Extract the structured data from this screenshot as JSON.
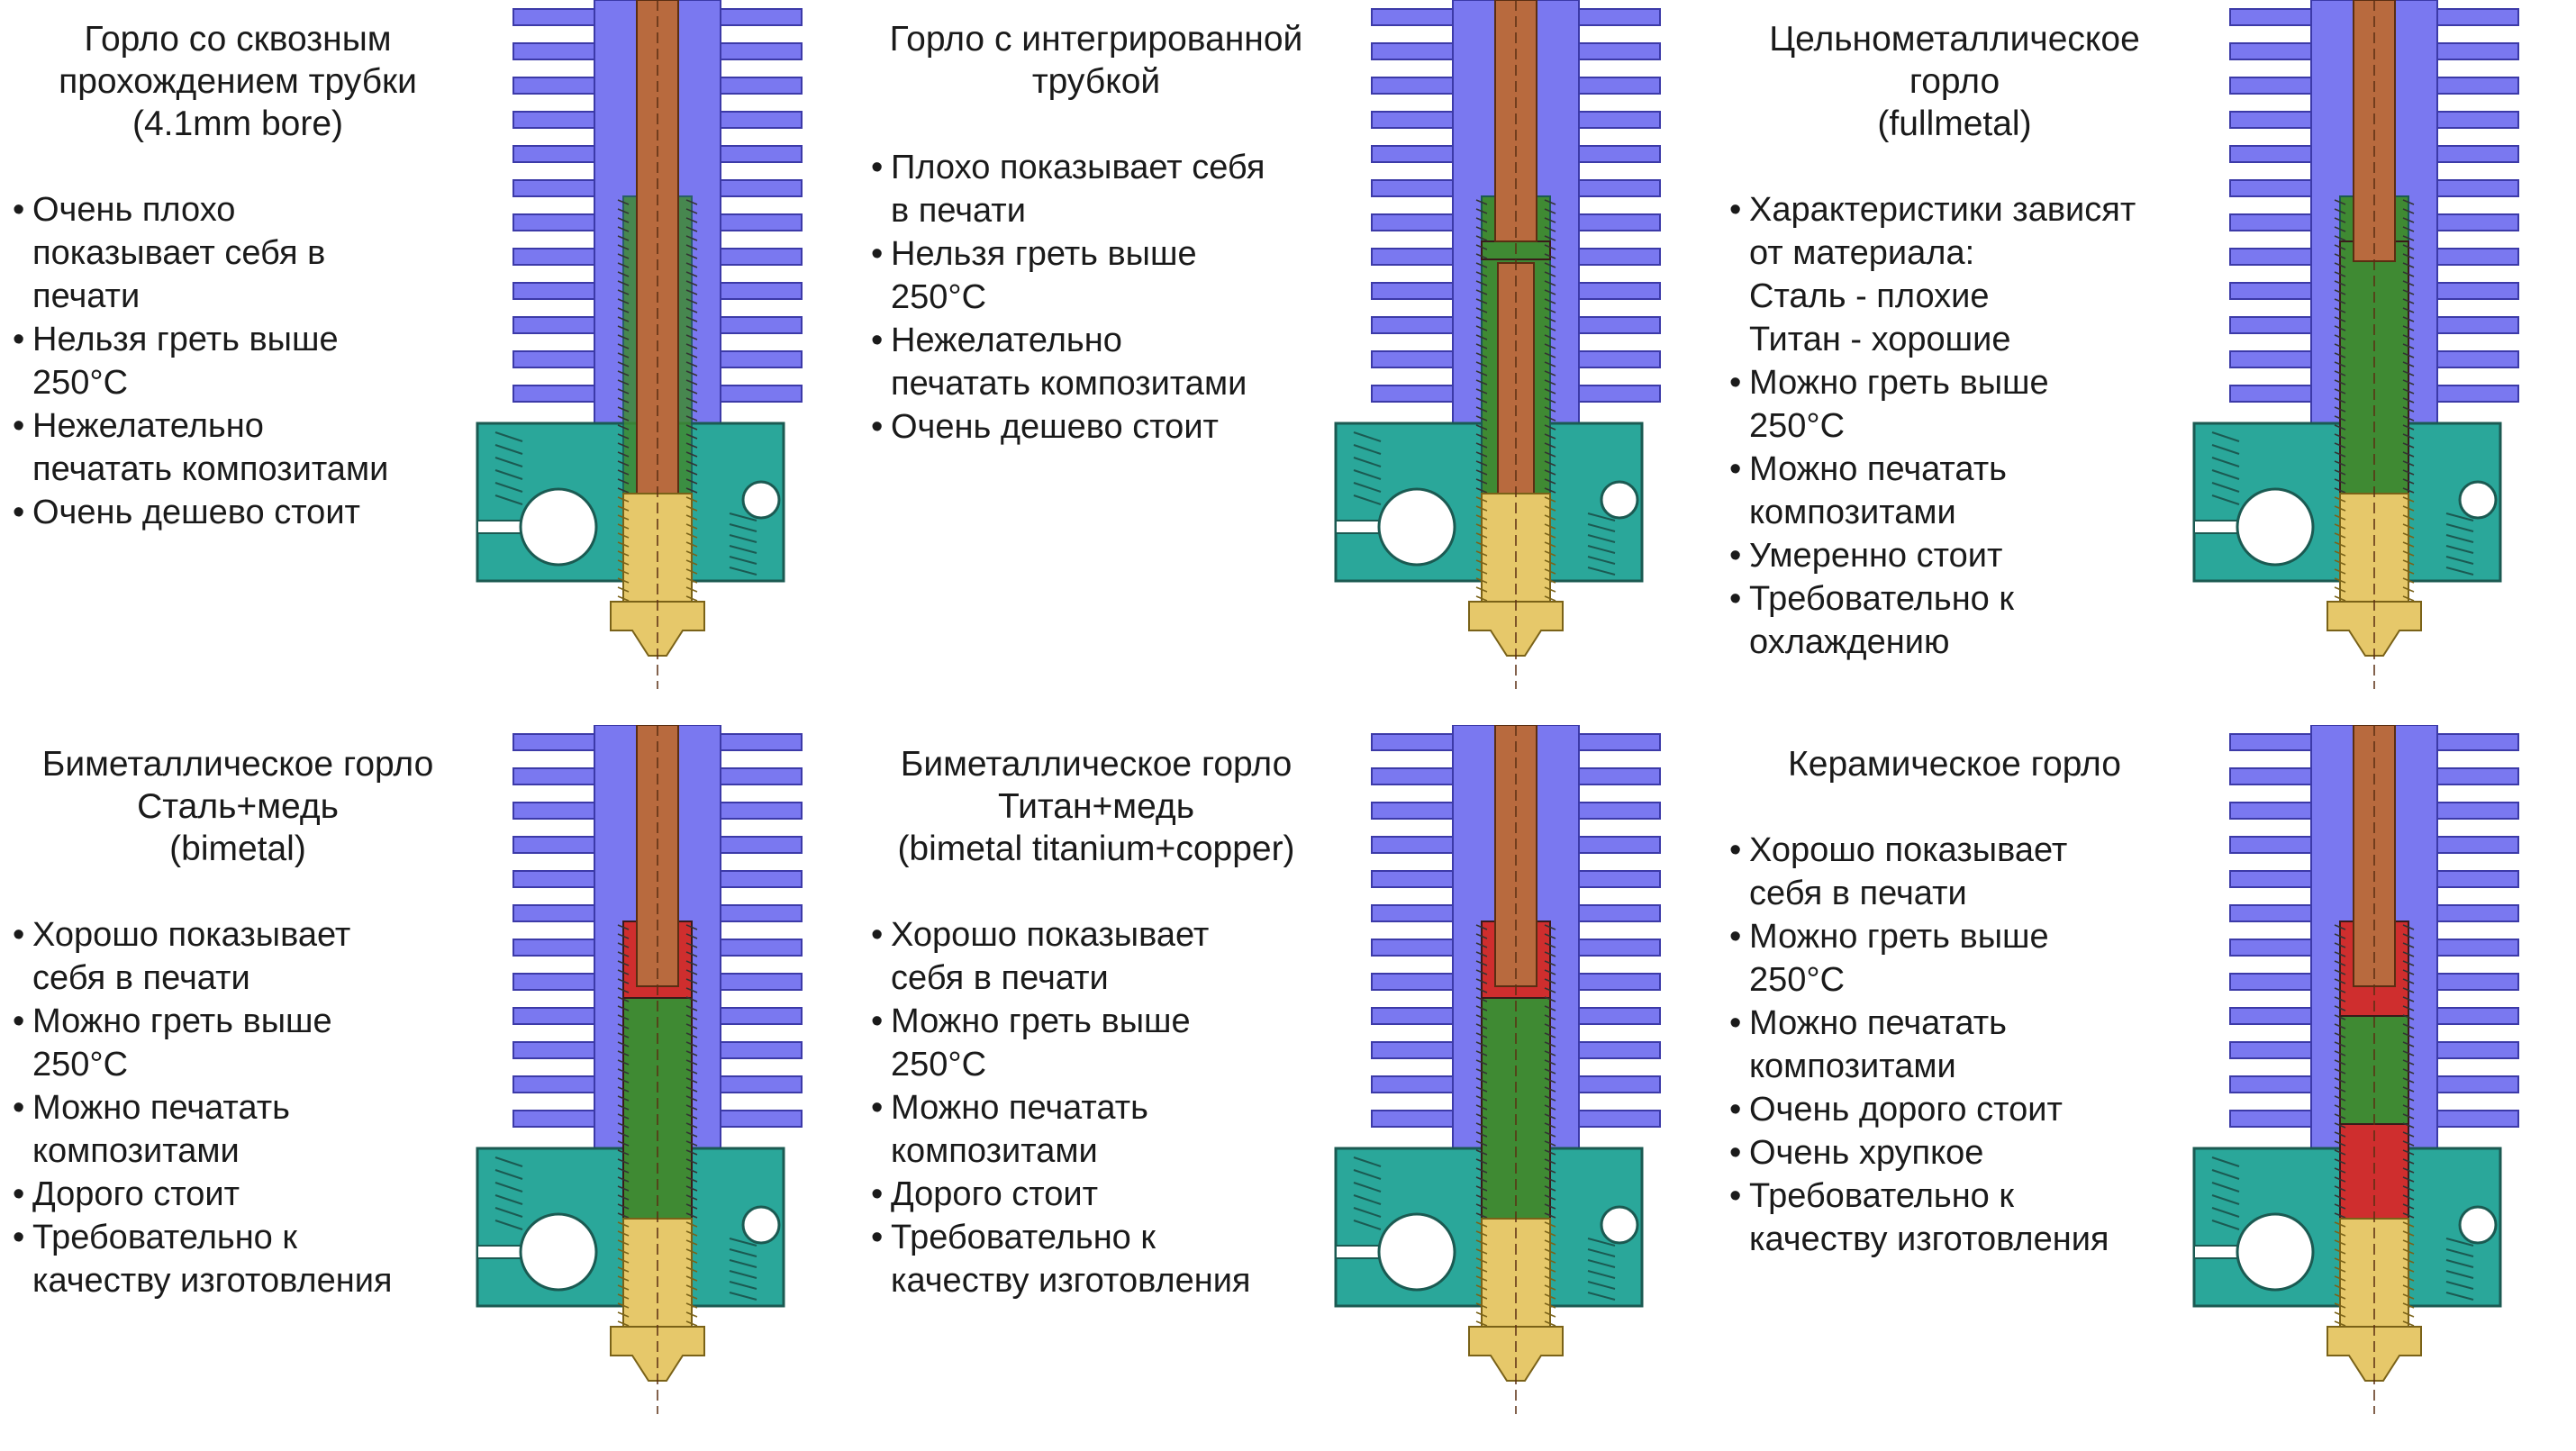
{
  "colors": {
    "heatsink": "#7a78f0",
    "heatsink_stroke": "#3c3aa8",
    "copper": "#b86a3e",
    "copper_stroke": "#5a2e12",
    "block": "#2aa79a",
    "block_stroke": "#1b5a52",
    "brass": "#e6c86a",
    "brass_stroke": "#7a6218",
    "steel": "#3f8a33",
    "bimetal": "#cf2e2e",
    "ceramic": "#cf2e2e"
  },
  "panels": [
    {
      "id": "through-tube",
      "title": "Горло со сквозным\nпрохождением трубки\n(4.1mm bore)",
      "bullets": [
        "Очень плохо\nпоказывает себя в\nпечати",
        "Нельзя греть выше\n250°C",
        "Нежелательно\nпечатать композитами",
        "Очень дешево стоит"
      ],
      "variant": "through-tube"
    },
    {
      "id": "integrated-tube",
      "title": "Горло с интегрированной\nтрубкой",
      "bullets": [
        "Плохо показывает себя\nв печати",
        "Нельзя греть выше\n250°C",
        "Нежелательно\nпечатать композитами",
        "Очень дешево стоит"
      ],
      "variant": "integrated-tube"
    },
    {
      "id": "fullmetal",
      "title": "Цельнометаллическое\nгорло\n(fullmetal)",
      "bullets": [
        "Характеристики зависят\nот материала:\nСталь - плохие\nТитан - хорошие",
        "Можно греть выше\n250°C",
        "Можно печатать\nкомпозитами",
        "Умеренно стоит",
        "Требовательно к\nохлаждению"
      ],
      "variant": "fullmetal"
    },
    {
      "id": "bimetal",
      "title": "Биметаллическое горло\nСталь+медь\n(bimetal)",
      "bullets": [
        "Хорошо показывает\nсебя в печати",
        "Можно греть выше\n250°C",
        "Можно печатать\nкомпозитами",
        "Дорого стоит",
        "Требовательно к\nкачеству изготовления"
      ],
      "variant": "bimetal"
    },
    {
      "id": "bimetal-titanium",
      "title": "Биметаллическое горло\nТитан+медь\n(bimetal titanium+copper)",
      "bullets": [
        "Хорошо показывает\nсебя в печати",
        "Можно греть выше\n250°C",
        "Можно печатать\nкомпозитами",
        "Дорого стоит",
        "Требовательно к\nкачеству изготовления"
      ],
      "variant": "bimetal-titanium"
    },
    {
      "id": "ceramic",
      "title": "Керамическое горло",
      "bullets": [
        "Хорошо показывает\nсебя в печати",
        "Можно греть выше\n250°C",
        "Можно печатать\nкомпозитами",
        "Очень дорого стоит",
        "Очень хрупкое",
        "Требовательно к\nкачеству изготовления"
      ],
      "variant": "ceramic"
    }
  ]
}
